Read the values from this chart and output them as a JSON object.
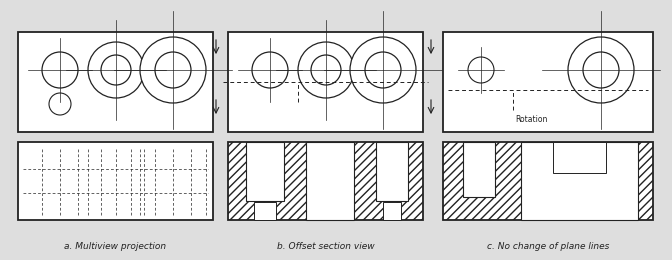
{
  "bg_color": "#dedede",
  "line_color": "#222222",
  "hatch_color": "#444444",
  "caption_a": "a. Multiview projection",
  "caption_b": "b. Offset section view",
  "caption_c": "c. No change of plane lines",
  "caption_fontsize": 6.5,
  "fig_w": 6.72,
  "fig_h": 2.6,
  "dpi": 100
}
